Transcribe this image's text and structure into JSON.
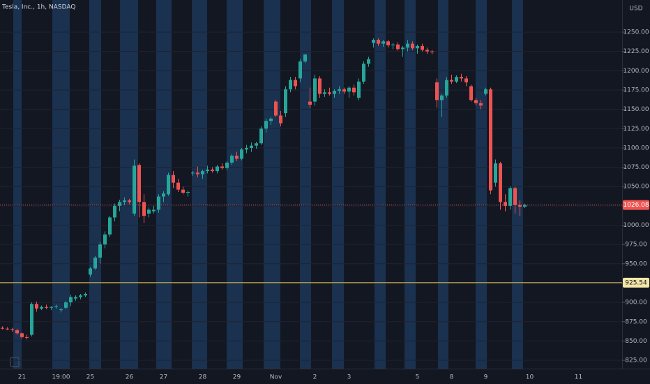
{
  "chart_data": {
    "type": "candlestick",
    "title": "Tesla, Inc., 1h, NASDAQ",
    "currency": "USD",
    "categories": [
      null,
      null,
      null,
      null,
      "21",
      null,
      null,
      null,
      null,
      null,
      null,
      null,
      "19:00",
      null,
      null,
      null,
      null,
      null,
      "25",
      null,
      null,
      null,
      null,
      null,
      null,
      null,
      "26",
      null,
      null,
      null,
      null,
      null,
      null,
      "27",
      null,
      null,
      null,
      null,
      null,
      null,
      null,
      "28",
      null,
      null,
      null,
      null,
      null,
      null,
      "29",
      null,
      null,
      null,
      null,
      null,
      null,
      null,
      "Nov",
      null,
      null,
      null,
      null,
      null,
      null,
      null,
      "2",
      null,
      null,
      null,
      null,
      null,
      null,
      "3",
      null,
      null,
      null,
      null,
      null,
      null,
      null,
      null,
      null,
      null,
      null,
      null,
      null,
      "5",
      null,
      null,
      null,
      null,
      null,
      null,
      "8",
      null,
      null,
      null,
      null,
      null,
      null,
      "9",
      null,
      null,
      null,
      null,
      null,
      null,
      null,
      null,
      "10",
      null,
      null,
      null,
      null,
      null,
      null,
      null,
      null,
      null,
      "11",
      null,
      null,
      null,
      null,
      null,
      null,
      null,
      null
    ],
    "open": [
      867,
      866,
      865,
      864,
      860,
      855,
      858,
      898,
      892,
      894,
      893,
      894,
      890,
      893,
      900,
      905,
      907,
      909,
      936,
      944,
      958,
      975,
      988,
      1010,
      1025,
      1030,
      1032,
      1015,
      1078,
      1030,
      1015,
      1018,
      1020,
      1037,
      1040,
      1065,
      1055,
      1046,
      1042,
      1067,
      1068,
      1066,
      1070,
      1072,
      1070,
      1076,
      1074,
      1081,
      1090,
      1086,
      1098,
      1100,
      1103,
      1106,
      1125,
      1135,
      1160,
      1142,
      1145,
      1176,
      1188,
      1190,
      1212,
      1160,
      1160,
      1190,
      1170,
      1172,
      1170,
      1174,
      1176,
      1173,
      1178,
      1165,
      1186,
      1209,
      1236,
      1240,
      1235,
      1238,
      1233,
      1234,
      1228,
      1230,
      1235,
      1229,
      1232,
      1227,
      1225,
      1185,
      1162,
      1168,
      1188,
      1186,
      1192,
      1190,
      1180,
      1162,
      1158,
      1170,
      1176,
      1055,
      1080,
      1030,
      1025,
      1048,
      1026,
      1024,
      null,
      null,
      null,
      null,
      null,
      null,
      null,
      null,
      null,
      null,
      null,
      null,
      null,
      null,
      null,
      null,
      null,
      null,
      null
    ],
    "high": [
      869,
      868,
      867,
      866,
      861,
      858,
      900,
      901,
      896,
      897,
      895,
      897,
      893,
      902,
      910,
      909,
      911,
      913,
      946,
      960,
      978,
      992,
      1012,
      1028,
      1033,
      1036,
      1034,
      1085,
      1080,
      1040,
      1023,
      1025,
      1040,
      1044,
      1068,
      1070,
      1060,
      1050,
      1045,
      1070,
      1076,
      1072,
      1077,
      1075,
      1078,
      1080,
      1083,
      1092,
      1095,
      1100,
      1104,
      1107,
      1108,
      1128,
      1138,
      1140,
      1162,
      1148,
      1180,
      1192,
      1192,
      1215,
      1222,
      1178,
      1195,
      1193,
      1176,
      1178,
      1176,
      1180,
      1178,
      1180,
      1182,
      1190,
      1212,
      1218,
      1242,
      1242,
      1240,
      1240,
      1236,
      1237,
      1232,
      1240,
      1238,
      1234,
      1235,
      1230,
      1227,
      1190,
      1170,
      1192,
      1195,
      1194,
      1196,
      1193,
      1182,
      1165,
      1162,
      1178,
      1178,
      1085,
      1082,
      1040,
      1050,
      1050,
      1032,
      1028,
      null,
      null,
      null,
      null,
      null,
      null,
      null,
      null,
      null,
      null,
      null,
      null,
      null,
      null,
      null,
      null,
      null,
      null,
      null
    ],
    "low": [
      865,
      864,
      862,
      858,
      853,
      852,
      856,
      888,
      890,
      891,
      890,
      892,
      887,
      891,
      895,
      902,
      904,
      907,
      933,
      942,
      950,
      970,
      985,
      1005,
      1018,
      1026,
      1027,
      1012,
      1010,
      1003,
      1010,
      1015,
      1016,
      1030,
      1038,
      1048,
      1043,
      1040,
      1037,
      1064,
      1062,
      1060,
      1067,
      1068,
      1067,
      1072,
      1071,
      1078,
      1083,
      1084,
      1093,
      1095,
      1099,
      1104,
      1120,
      1130,
      1140,
      1128,
      1140,
      1172,
      1176,
      1185,
      1210,
      1152,
      1155,
      1165,
      1166,
      1168,
      1165,
      1170,
      1170,
      1165,
      1168,
      1162,
      1183,
      1205,
      1230,
      1232,
      1231,
      1230,
      1228,
      1226,
      1218,
      1225,
      1227,
      1222,
      1225,
      1222,
      1221,
      1152,
      1140,
      1165,
      1183,
      1184,
      1186,
      1180,
      1160,
      1155,
      1150,
      1168,
      1040,
      1050,
      1020,
      1018,
      1020,
      1015,
      1012,
      1022,
      null,
      null,
      null,
      null,
      null,
      null,
      null,
      null,
      null,
      null,
      null,
      null,
      null,
      null,
      null,
      null,
      null,
      null,
      null
    ],
    "close": [
      866,
      865,
      864,
      860,
      855,
      854,
      898,
      892,
      894,
      893,
      894,
      895,
      891,
      900,
      907,
      907,
      909,
      911,
      944,
      958,
      975,
      988,
      1010,
      1025,
      1030,
      1032,
      1030,
      1077,
      1030,
      1012,
      1020,
      1020,
      1037,
      1041,
      1065,
      1055,
      1046,
      1042,
      1043,
      1068,
      1066,
      1070,
      1072,
      1070,
      1076,
      1074,
      1081,
      1090,
      1086,
      1098,
      1100,
      1103,
      1106,
      1125,
      1135,
      1138,
      1142,
      1132,
      1176,
      1188,
      1180,
      1212,
      1221,
      1156,
      1190,
      1170,
      1172,
      1170,
      1174,
      1176,
      1173,
      1178,
      1172,
      1186,
      1209,
      1215,
      1240,
      1235,
      1238,
      1233,
      1234,
      1228,
      1230,
      1235,
      1229,
      1232,
      1227,
      1225,
      1224,
      1162,
      1168,
      1188,
      1186,
      1192,
      1190,
      1185,
      1162,
      1158,
      1155,
      1176,
      1045,
      1080,
      1030,
      1025,
      1048,
      1026,
      1024,
      1026.08,
      null,
      null,
      null,
      null,
      null,
      null,
      null,
      null,
      null,
      null,
      null,
      null,
      null,
      null,
      null,
      null,
      null,
      null,
      null
    ],
    "up_color": "#26a69a",
    "down_color": "#ef5350",
    "ylim": [
      814.2,
      1291.6
    ],
    "yticks": [
      {
        "value": 825,
        "label": "825.00"
      },
      {
        "value": 850,
        "label": "850.00"
      },
      {
        "value": 875,
        "label": "875.00"
      },
      {
        "value": 900,
        "label": "900.00"
      },
      {
        "value": 925,
        "label": "925.00"
      },
      {
        "value": 950,
        "label": "950.00"
      },
      {
        "value": 975,
        "label": "975.00"
      },
      {
        "value": 1000,
        "label": "1000.00"
      },
      {
        "value": 1025,
        "label": "1025.00"
      },
      {
        "value": 1050,
        "label": "1050.00"
      },
      {
        "value": 1075,
        "label": "1075.00"
      },
      {
        "value": 1100,
        "label": "1100.00"
      },
      {
        "value": 1125,
        "label": "1125.00"
      },
      {
        "value": 1150,
        "label": "1150.00"
      },
      {
        "value": 1175,
        "label": "1175.00"
      },
      {
        "value": 1200,
        "label": "1200.00"
      },
      {
        "value": 1225,
        "label": "1225.00"
      },
      {
        "value": 1250,
        "label": "1250.00"
      }
    ],
    "grid": true,
    "horizontal_line": {
      "value": 925.54,
      "color": "#f0d060"
    },
    "last_price": 1026.08
  }
}
